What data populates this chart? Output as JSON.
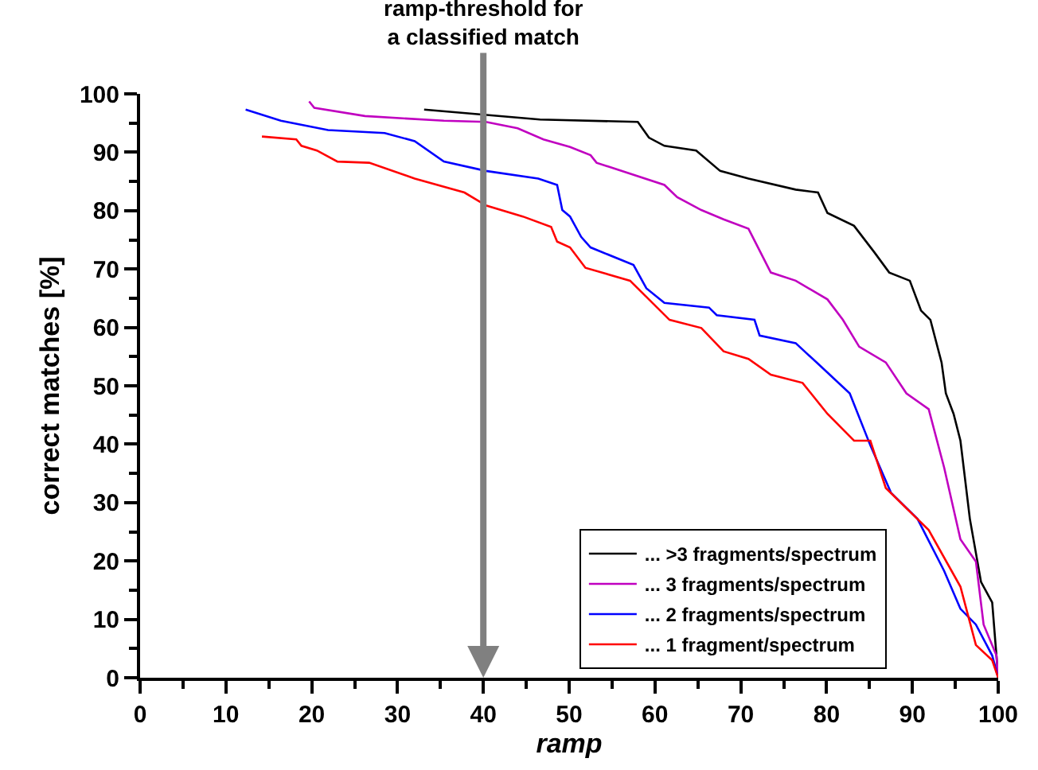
{
  "chart_data": {
    "type": "line",
    "xlabel": "ramp",
    "ylabel": "correct matches [%]",
    "xlim": [
      0,
      100
    ],
    "xticks": [
      0,
      10,
      20,
      30,
      40,
      50,
      60,
      70,
      80,
      90,
      100
    ],
    "ylim": [
      0,
      100
    ],
    "yticks": [
      0,
      10,
      20,
      30,
      40,
      50,
      60,
      70,
      80,
      90,
      100
    ],
    "grid": false,
    "legend": "bottom right",
    "marker": "none",
    "line_style": "solid",
    "ref_lines": [
      {
        "axis": "x",
        "value": 40,
        "label": "ramp-threshold for\na classified match",
        "color": "#808080"
      }
    ],
    "series": [
      {
        "name": "... >3 fragments/spectrum",
        "color": "#000000",
        "x": [
          33.1,
          46.6,
          58,
          59.3,
          61.1,
          64.8,
          67.6,
          70.9,
          76.4,
          79,
          80.1,
          83.2,
          85.6,
          87.3,
          89.7,
          91,
          92.1,
          93.4,
          93.9,
          94.8,
          95.6,
          96.7,
          98,
          99.3,
          100
        ],
        "values": [
          97.3,
          95.6,
          95.2,
          92.5,
          91.1,
          90.3,
          86.8,
          85.5,
          83.6,
          83.1,
          79.6,
          77.4,
          72.8,
          69.4,
          68,
          62.9,
          61.3,
          54,
          48.7,
          45.2,
          40.6,
          27.2,
          16.4,
          12.9,
          0
        ]
      },
      {
        "name": "... 3 fragments/spectrum",
        "color": "#c000c0",
        "x": [
          19.7,
          20.3,
          26.2,
          35.4,
          40.3,
          44,
          47,
          50.1,
          52.5,
          53.2,
          61.1,
          62.6,
          65.4,
          68,
          70.9,
          73.5,
          76.4,
          80.1,
          81.9,
          83.8,
          86.9,
          89.3,
          91.9,
          93.7,
          95.6,
          97.4,
          98.3,
          99.8,
          100
        ],
        "values": [
          98.7,
          97.6,
          96.2,
          95.4,
          95.2,
          94.1,
          92.2,
          90.9,
          89.5,
          88.2,
          84.4,
          82.3,
          80.1,
          78.5,
          76.9,
          69.4,
          68,
          64.8,
          61.3,
          56.7,
          54,
          48.7,
          46,
          36,
          23.7,
          19.9,
          9.1,
          3.8,
          0
        ]
      },
      {
        "name": "... 2 fragments/spectrum",
        "color": "#0000ff",
        "x": [
          12.3,
          16.4,
          21.9,
          28.5,
          32,
          35.4,
          40.3,
          46.4,
          48.6,
          49.2,
          50.1,
          51.4,
          52.5,
          57.5,
          59,
          61.1,
          66.3,
          67.2,
          71.6,
          72.2,
          76.4,
          79.2,
          82.7,
          85.1,
          87.5,
          90.6,
          93.7,
          95.6,
          97.4,
          99.3,
          100
        ],
        "values": [
          97.3,
          95.4,
          93.8,
          93.3,
          91.9,
          88.4,
          86.8,
          85.5,
          84.4,
          80.1,
          79,
          75.5,
          73.7,
          70.7,
          66.7,
          64.2,
          63.4,
          62.1,
          61.3,
          58.6,
          57.3,
          53.5,
          48.7,
          39.8,
          31.7,
          27.2,
          18.3,
          11.8,
          9.1,
          3.8,
          0
        ]
      },
      {
        "name": "... 1 fragment/spectrum",
        "color": "#ff0000",
        "x": [
          14.2,
          18.2,
          18.8,
          20.6,
          23,
          26.7,
          32,
          37.8,
          40.3,
          44.6,
          47.9,
          48.6,
          50.1,
          51.9,
          57.1,
          61.7,
          65.4,
          68,
          70.9,
          73.5,
          77.2,
          80.1,
          83.2,
          85.1,
          86.9,
          91.9,
          95.6,
          97.4,
          99.3,
          100
        ],
        "values": [
          92.7,
          92.2,
          91.1,
          90.3,
          88.4,
          88.2,
          85.5,
          83.1,
          80.9,
          79,
          77.2,
          74.7,
          73.7,
          70.2,
          68,
          61.3,
          59.9,
          55.9,
          54.6,
          51.9,
          50.5,
          45.2,
          40.6,
          40.6,
          32.5,
          25.3,
          15.6,
          5.6,
          3,
          0
        ]
      }
    ]
  }
}
